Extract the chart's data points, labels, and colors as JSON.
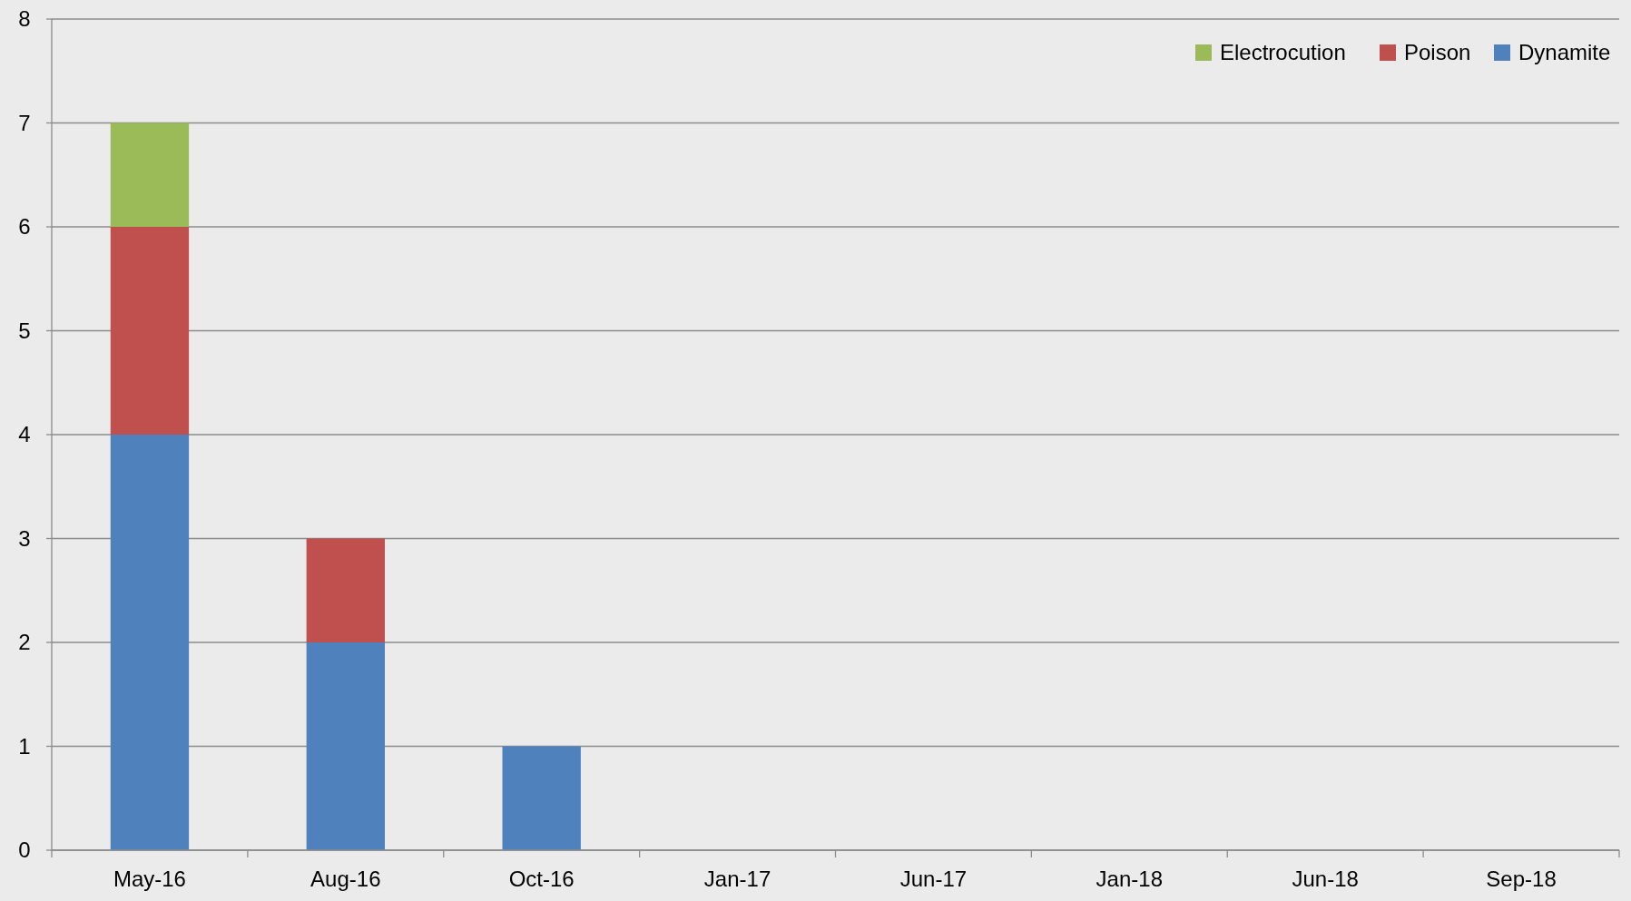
{
  "chart_data": {
    "type": "bar",
    "stacked": true,
    "categories": [
      "May-16",
      "Aug-16",
      "Oct-16",
      "Jan-17",
      "Jun-17",
      "Jan-18",
      "Jun-18",
      "Sep-18"
    ],
    "series": [
      {
        "name": "Dynamite",
        "color": "#4f81bd",
        "values": [
          4,
          2,
          1,
          0,
          0,
          0,
          0,
          0
        ]
      },
      {
        "name": "Poison",
        "color": "#c0504d",
        "values": [
          2,
          1,
          0,
          0,
          0,
          0,
          0,
          0
        ]
      },
      {
        "name": "Electrocution",
        "color": "#9bbb59",
        "values": [
          1,
          0,
          0,
          0,
          0,
          0,
          0,
          0
        ]
      }
    ],
    "ylim": [
      0,
      8
    ],
    "yticks": [
      0,
      1,
      2,
      3,
      4,
      5,
      6,
      7,
      8
    ],
    "grid": "y",
    "legend": "top right"
  }
}
